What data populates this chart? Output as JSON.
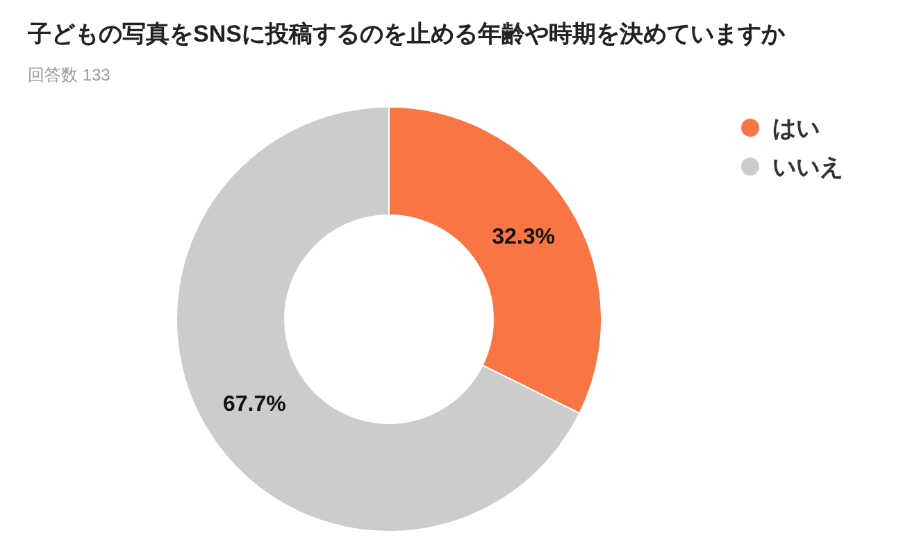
{
  "chart_data": {
    "type": "donut",
    "title": "子どもの写真をSNSに投稿するのを止める年齢や時期を決めていますか",
    "subtitle": "回答数 133",
    "categories": [
      "はい",
      "いいえ"
    ],
    "values": [
      32.3,
      67.7
    ],
    "value_labels": [
      "32.3%",
      "67.7%"
    ],
    "colors": [
      "#f97544",
      "#cccccc"
    ],
    "legend": "top right"
  }
}
